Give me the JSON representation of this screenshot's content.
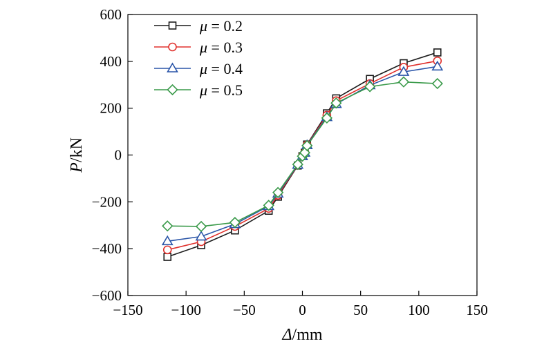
{
  "chart_data": {
    "type": "line",
    "xlabel": {
      "symbol": "Δ",
      "unit": "/mm"
    },
    "ylabel": {
      "symbol": "P",
      "unit": "/kN"
    },
    "xlim": [
      -150,
      150
    ],
    "ylim": [
      -600,
      600
    ],
    "xticks": [
      -150,
      -100,
      -50,
      0,
      50,
      100,
      150
    ],
    "yticks": [
      -600,
      -400,
      -200,
      0,
      200,
      400,
      600
    ],
    "xtick_labels": [
      "−150",
      "−100",
      "−50",
      "0",
      "50",
      "100",
      "150"
    ],
    "ytick_labels": [
      "−600",
      "−400",
      "−200",
      "0",
      "200",
      "400",
      "600"
    ],
    "grid": false,
    "legend_position": "top-left",
    "series": [
      {
        "name": "μ = 0.2",
        "legend_symbol": "μ",
        "legend_text": " = 0.2",
        "color": "#1a1a1a",
        "marker": "square",
        "x": [
          -116,
          -87,
          -58,
          -29,
          -21,
          -4,
          0,
          2,
          4,
          21,
          29,
          58,
          87,
          116
        ],
        "y": [
          -435,
          -385,
          -322,
          -238,
          -178,
          -45,
          -5,
          10,
          45,
          178,
          242,
          325,
          392,
          438
        ]
      },
      {
        "name": "μ = 0.3",
        "legend_symbol": "μ",
        "legend_text": " = 0.3",
        "color": "#e0312d",
        "marker": "circle",
        "x": [
          -116,
          -87,
          -58,
          -29,
          -21,
          -4,
          0,
          2,
          4,
          21,
          29,
          58,
          87,
          116
        ],
        "y": [
          -405,
          -370,
          -305,
          -228,
          -172,
          -43,
          -5,
          10,
          43,
          170,
          232,
          305,
          375,
          402
        ]
      },
      {
        "name": "μ = 0.4",
        "legend_symbol": "μ",
        "legend_text": " = 0.4",
        "color": "#2a55a8",
        "marker": "triangle",
        "x": [
          -116,
          -87,
          -58,
          -29,
          -21,
          -4,
          0,
          2,
          4,
          21,
          29,
          58,
          87,
          116
        ],
        "y": [
          -368,
          -348,
          -295,
          -218,
          -165,
          -42,
          -5,
          10,
          42,
          162,
          218,
          298,
          355,
          378
        ]
      },
      {
        "name": "μ = 0.5",
        "legend_symbol": "μ",
        "legend_text": " = 0.5",
        "color": "#3a9a4a",
        "marker": "diamond",
        "x": [
          -116,
          -87,
          -58,
          -29,
          -21,
          -4,
          0,
          2,
          4,
          21,
          29,
          58,
          87,
          116
        ],
        "y": [
          -303,
          -305,
          -288,
          -215,
          -160,
          -40,
          -5,
          10,
          40,
          158,
          222,
          292,
          312,
          305
        ]
      }
    ]
  }
}
